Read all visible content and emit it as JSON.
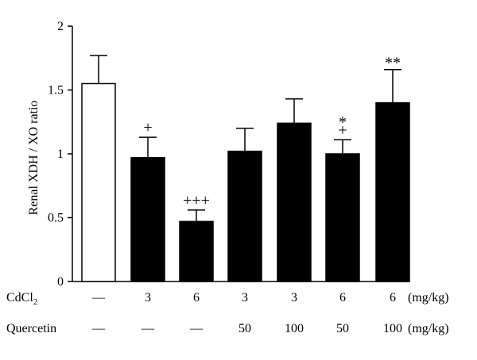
{
  "chart_data": {
    "type": "bar",
    "ylabel": "Renal XDH / XO ratio",
    "ylim": [
      0,
      2
    ],
    "yticks": [
      "0",
      "0.5",
      "1",
      "1.5",
      "2"
    ],
    "grid": false,
    "bars": [
      {
        "value": 1.55,
        "error": 0.22,
        "fill": "white",
        "sig_top": "",
        "sig_bottom": ""
      },
      {
        "value": 0.97,
        "error": 0.16,
        "fill": "black",
        "sig_top": "",
        "sig_bottom": "+"
      },
      {
        "value": 0.47,
        "error": 0.09,
        "fill": "black",
        "sig_top": "",
        "sig_bottom": "+++"
      },
      {
        "value": 1.02,
        "error": 0.18,
        "fill": "black",
        "sig_top": "",
        "sig_bottom": ""
      },
      {
        "value": 1.24,
        "error": 0.19,
        "fill": "black",
        "sig_top": "",
        "sig_bottom": ""
      },
      {
        "value": 1.0,
        "error": 0.11,
        "fill": "black",
        "sig_top": "*",
        "sig_bottom": "+"
      },
      {
        "value": 1.4,
        "error": 0.26,
        "fill": "black",
        "sig_top": "**",
        "sig_bottom": ""
      }
    ],
    "treatment_rows": [
      {
        "label": "CdCl",
        "label_sub": "2",
        "values": [
          "—",
          "3",
          "6",
          "3",
          "3",
          "6",
          "6"
        ],
        "unit": "(mg/kg)"
      },
      {
        "label": "Quercetin",
        "label_sub": "",
        "values": [
          "—",
          "—",
          "—",
          "50",
          "100",
          "50",
          "100"
        ],
        "unit": "(mg/kg)"
      }
    ]
  }
}
